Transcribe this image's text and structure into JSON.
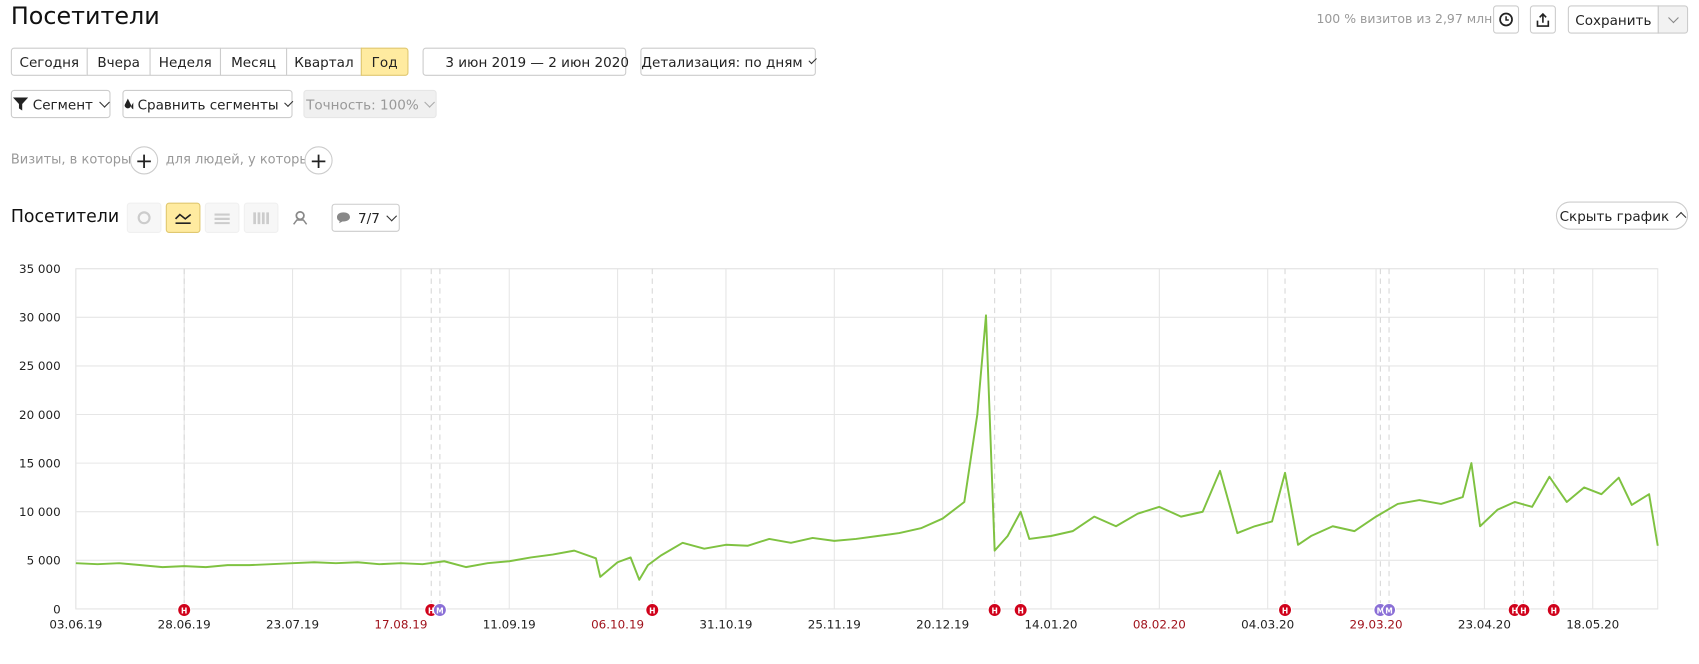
{
  "header": {
    "title": "Посетители",
    "sample_info": "100 % визитов из 2,97 млн",
    "save": "Сохранить"
  },
  "periods": [
    "Сегодня",
    "Вчера",
    "Неделя",
    "Месяц",
    "Квартал",
    "Год"
  ],
  "date_range": "3 июн 2019 — 2 июн 2020",
  "detail": "Детализация: по дням",
  "segment_bar": {
    "segment": "Сегмент",
    "compare": "Сравнить сегменты",
    "accuracy": "Точность: 100%"
  },
  "filter": {
    "visits": "Визиты, в которых",
    "people": "для людей, у которых"
  },
  "chart_header": {
    "title": "Посетители",
    "notes": "7/7",
    "hide": "Скрыть график"
  },
  "chart_data": {
    "type": "line",
    "color": "#7fc241",
    "grid": true,
    "xlim": [
      "03.06.19",
      "02.06.20"
    ],
    "xticks": [
      "03.06.19",
      "28.06.19",
      "23.07.19",
      "17.08.19",
      "11.09.19",
      "06.10.19",
      "31.10.19",
      "25.11.19",
      "20.12.19",
      "14.01.20",
      "08.02.20",
      "04.03.20",
      "29.03.20",
      "23.04.20",
      "18.05.20"
    ],
    "ylim": [
      0,
      35000
    ],
    "yticks": [
      0,
      {
        "value": 5000,
        "label": "5 000"
      },
      {
        "value": 10000,
        "label": "10 000"
      },
      {
        "value": 15000,
        "label": "15 000"
      },
      {
        "value": 20000,
        "label": "20 000"
      },
      {
        "value": 25000,
        "label": "25 000"
      },
      {
        "value": 30000,
        "label": "30 000"
      },
      {
        "value": 35000,
        "label": "35 000"
      }
    ],
    "x": [
      "03.06.19",
      "08.06.19",
      "13.06.19",
      "18.06.19",
      "23.06.19",
      "28.06.19",
      "03.07.19",
      "08.07.19",
      "13.07.19",
      "18.07.19",
      "23.07.19",
      "28.07.19",
      "02.08.19",
      "07.08.19",
      "12.08.19",
      "17.08.19",
      "22.08.19",
      "27.08.19",
      "01.09.19",
      "06.09.19",
      "11.09.19",
      "16.09.19",
      "21.09.19",
      "26.09.19",
      "01.10.19",
      "02.10.19",
      "06.10.19",
      "09.10.19",
      "11.10.19",
      "13.10.19",
      "16.10.19",
      "21.10.19",
      "26.10.19",
      "31.10.19",
      "05.11.19",
      "10.11.19",
      "15.11.19",
      "20.11.19",
      "25.11.19",
      "30.11.19",
      "05.12.19",
      "10.12.19",
      "15.12.19",
      "20.12.19",
      "25.12.19",
      "28.12.19",
      "30.12.19",
      "01.01.20",
      "04.01.20",
      "07.01.20",
      "09.01.20",
      "14.01.20",
      "19.01.20",
      "24.01.20",
      "29.01.20",
      "03.02.20",
      "08.02.20",
      "13.02.20",
      "18.02.20",
      "22.02.20",
      "26.02.20",
      "01.03.20",
      "05.03.20",
      "08.03.20",
      "11.03.20",
      "14.03.20",
      "19.03.20",
      "24.03.20",
      "29.03.20",
      "03.04.20",
      "08.04.20",
      "13.04.20",
      "18.04.20",
      "20.04.20",
      "22.04.20",
      "26.04.20",
      "30.04.20",
      "04.05.20",
      "08.05.20",
      "12.05.20",
      "16.05.20",
      "20.05.20",
      "24.05.20",
      "27.05.20",
      "31.05.20",
      "02.06.20"
    ],
    "values": [
      4700,
      4600,
      4700,
      4500,
      4300,
      4400,
      4300,
      4500,
      4500,
      4600,
      4700,
      4800,
      4700,
      4800,
      4600,
      4700,
      4600,
      4900,
      4300,
      4700,
      4900,
      5300,
      5600,
      6000,
      5200,
      3300,
      4800,
      5300,
      3000,
      4500,
      5500,
      6800,
      6200,
      6600,
      6500,
      7200,
      6800,
      7300,
      7000,
      7200,
      7500,
      7800,
      8300,
      9300,
      11000,
      20000,
      30200,
      6000,
      7500,
      10000,
      7200,
      7500,
      8000,
      9500,
      8500,
      9800,
      10500,
      9500,
      10000,
      14200,
      7800,
      8500,
      9000,
      14000,
      6600,
      7500,
      8500,
      8000,
      9500,
      10800,
      11200,
      10800,
      11500,
      15000,
      8500,
      10200,
      11000,
      10500,
      13600,
      11000,
      12500,
      11800,
      13500,
      10700,
      11800,
      6500
    ],
    "annotations": [
      {
        "x": "28.06.19",
        "label": "Н",
        "color": "#d0021b"
      },
      {
        "x": "24.08.19",
        "label": "Н",
        "color": "#d0021b"
      },
      {
        "x": "26.08.19",
        "label": "М",
        "color": "#8a6fd6"
      },
      {
        "x": "14.10.19",
        "label": "Н",
        "color": "#d0021b"
      },
      {
        "x": "01.01.20",
        "label": "Н",
        "color": "#d0021b"
      },
      {
        "x": "07.01.20",
        "label": "Н",
        "color": "#d0021b"
      },
      {
        "x": "08.03.20",
        "label": "Н",
        "color": "#d0021b"
      },
      {
        "x": "30.03.20",
        "label": "М",
        "color": "#8a6fd6"
      },
      {
        "x": "01.04.20",
        "label": "М",
        "color": "#8a6fd6"
      },
      {
        "x": "30.04.20",
        "label": "Н",
        "color": "#d0021b"
      },
      {
        "x": "02.05.20",
        "label": "Н",
        "color": "#d0021b"
      },
      {
        "x": "09.05.20",
        "label": "Н",
        "color": "#d0021b"
      }
    ]
  }
}
